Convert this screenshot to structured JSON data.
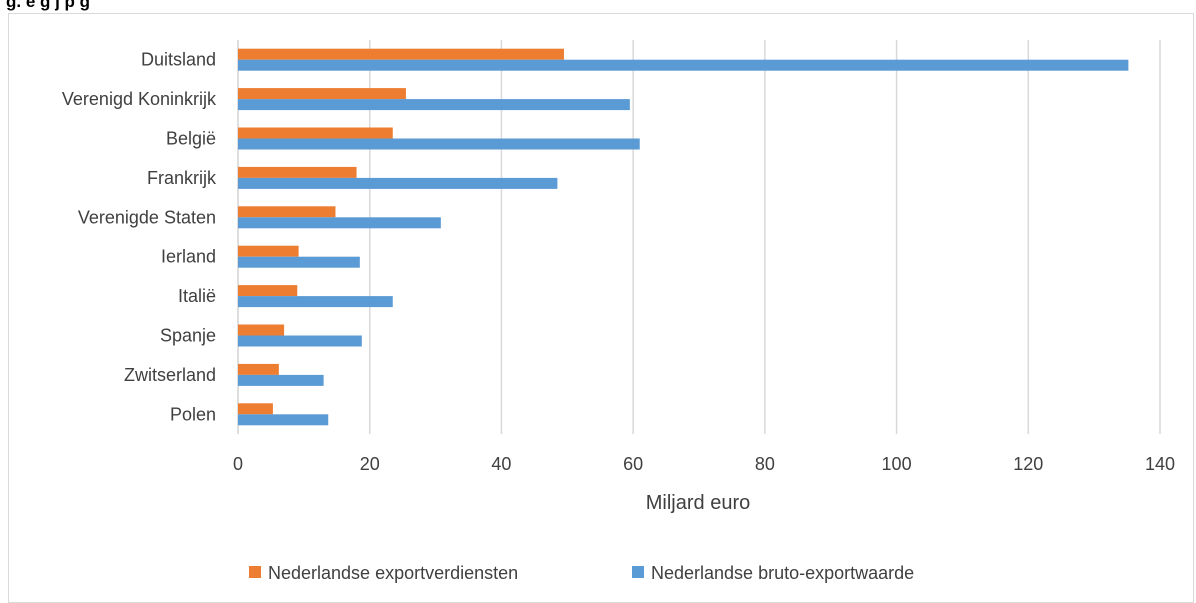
{
  "page": {
    "title": "g.   e  g  j    p         g"
  },
  "chart_data": {
    "type": "bar",
    "orientation": "horizontal",
    "categories": [
      "Duitsland",
      "Verenigd Koninkrijk",
      "België",
      "Frankrijk",
      "Verenigde Staten",
      "Ierland",
      "Italië",
      "Spanje",
      "Zwitserland",
      "Polen"
    ],
    "series": [
      {
        "name": "Nederlandse exportverdiensten",
        "color": "#ed7d31",
        "values": [
          49.5,
          25.5,
          23.5,
          18,
          14.8,
          9.2,
          9,
          7,
          6.2,
          5.3
        ]
      },
      {
        "name": "Nederlandse bruto-exportwaarde",
        "color": "#5b9bd5",
        "values": [
          135.2,
          59.5,
          61,
          48.5,
          30.8,
          18.5,
          23.5,
          18.8,
          13,
          13.7
        ]
      }
    ],
    "xlabel": "Miljard euro",
    "ylabel": "",
    "xlim": [
      0,
      140
    ],
    "xticks": [
      0,
      20,
      40,
      60,
      80,
      100,
      120,
      140
    ],
    "grid": "vertical",
    "legend_position": "bottom",
    "gridline_color": "#d9d9d9",
    "axis_color": "#d9d9d9"
  }
}
